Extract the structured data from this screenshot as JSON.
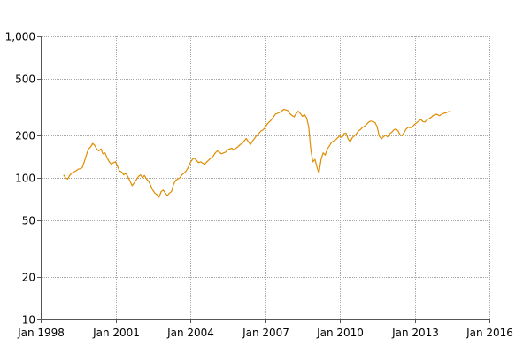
{
  "chart_data": {
    "type": "line",
    "title": "",
    "xlabel": "",
    "ylabel": "",
    "y_scale": "log",
    "ylim": [
      10,
      1000
    ],
    "xlim": [
      "1998-01-01",
      "2016-01-01"
    ],
    "grid": true,
    "legend": "none",
    "y_ticks": [
      {
        "value": 10,
        "label": "10"
      },
      {
        "value": 20,
        "label": "20"
      },
      {
        "value": 50,
        "label": "50"
      },
      {
        "value": 100,
        "label": "100"
      },
      {
        "value": 200,
        "label": "200"
      },
      {
        "value": 500,
        "label": "500"
      },
      {
        "value": 1000,
        "label": "1,000"
      }
    ],
    "x_ticks": [
      {
        "value": "1998-01-01",
        "label": "Jan 1998"
      },
      {
        "value": "2001-01-01",
        "label": "Jan 2001"
      },
      {
        "value": "2004-01-01",
        "label": "Jan 2004"
      },
      {
        "value": "2007-01-01",
        "label": "Jan 2007"
      },
      {
        "value": "2010-01-01",
        "label": "Jan 2010"
      },
      {
        "value": "2013-01-01",
        "label": "Jan 2013"
      },
      {
        "value": "2016-01-01",
        "label": "Jan 2016"
      }
    ],
    "colors": {
      "line": "#e08c00",
      "grid": "#a8a8a8",
      "axis": "#555555"
    },
    "series": [
      {
        "x": [
          "1998-12-01",
          "1999-01-01",
          "1999-02-01",
          "1999-03-01",
          "1999-04-01",
          "1999-05-01",
          "1999-06-01",
          "1999-07-01",
          "1999-08-01",
          "1999-09-01",
          "1999-10-01",
          "1999-11-01",
          "1999-12-01",
          "2000-01-01",
          "2000-02-01",
          "2000-03-01",
          "2000-04-01",
          "2000-05-01",
          "2000-06-01",
          "2000-07-01",
          "2000-08-01",
          "2000-09-01",
          "2000-10-01",
          "2000-11-01",
          "2000-12-01",
          "2001-01-01",
          "2001-02-01",
          "2001-03-01",
          "2001-04-01",
          "2001-05-01",
          "2001-06-01",
          "2001-07-01",
          "2001-08-01",
          "2001-09-01",
          "2001-10-01",
          "2001-11-01",
          "2001-12-01",
          "2002-01-01",
          "2002-02-01",
          "2002-03-01",
          "2002-04-01",
          "2002-05-01",
          "2002-06-01",
          "2002-07-01",
          "2002-08-01",
          "2002-09-01",
          "2002-10-01",
          "2002-11-01",
          "2002-12-01",
          "2003-01-01",
          "2003-02-01",
          "2003-03-01",
          "2003-04-01",
          "2003-05-01",
          "2003-06-01",
          "2003-07-01",
          "2003-08-01",
          "2003-09-01",
          "2003-10-01",
          "2003-11-01",
          "2003-12-01",
          "2004-01-01",
          "2004-02-01",
          "2004-03-01",
          "2004-04-01",
          "2004-05-01",
          "2004-06-01",
          "2004-07-01",
          "2004-08-01",
          "2004-09-01",
          "2004-10-01",
          "2004-11-01",
          "2004-12-01",
          "2005-01-01",
          "2005-02-01",
          "2005-03-01",
          "2005-04-01",
          "2005-05-01",
          "2005-06-01",
          "2005-07-01",
          "2005-08-01",
          "2005-09-01",
          "2005-10-01",
          "2005-11-01",
          "2005-12-01",
          "2006-01-01",
          "2006-02-01",
          "2006-03-01",
          "2006-04-01",
          "2006-05-01",
          "2006-06-01",
          "2006-07-01",
          "2006-08-01",
          "2006-09-01",
          "2006-10-01",
          "2006-11-01",
          "2006-12-01",
          "2007-01-01",
          "2007-02-01",
          "2007-03-01",
          "2007-04-01",
          "2007-05-01",
          "2007-06-01",
          "2007-07-01",
          "2007-08-01",
          "2007-09-01",
          "2007-10-01",
          "2007-11-01",
          "2007-12-01",
          "2008-01-01",
          "2008-02-01",
          "2008-03-01",
          "2008-04-01",
          "2008-05-01",
          "2008-06-01",
          "2008-07-01",
          "2008-08-01",
          "2008-09-01",
          "2008-10-01",
          "2008-11-01",
          "2008-12-01",
          "2009-01-01",
          "2009-02-01",
          "2009-03-01",
          "2009-04-01",
          "2009-05-01",
          "2009-06-01",
          "2009-07-01",
          "2009-08-01",
          "2009-09-01",
          "2009-10-01",
          "2009-11-01",
          "2009-12-01",
          "2010-01-01",
          "2010-02-01",
          "2010-03-01",
          "2010-04-01",
          "2010-05-01",
          "2010-06-01",
          "2010-07-01",
          "2010-08-01",
          "2010-09-01",
          "2010-10-01",
          "2010-11-01",
          "2010-12-01",
          "2011-01-01",
          "2011-02-01",
          "2011-03-01",
          "2011-04-01",
          "2011-05-01",
          "2011-06-01",
          "2011-07-01",
          "2011-08-01",
          "2011-09-01",
          "2011-10-01",
          "2011-11-01",
          "2011-12-01",
          "2012-01-01",
          "2012-02-01",
          "2012-03-01",
          "2012-04-01",
          "2012-05-01",
          "2012-06-01",
          "2012-07-01",
          "2012-08-01",
          "2012-09-01",
          "2012-10-01",
          "2012-11-01",
          "2012-12-01",
          "2013-01-01",
          "2013-02-01",
          "2013-03-01",
          "2013-04-01",
          "2013-05-01",
          "2013-06-01",
          "2013-07-01",
          "2013-08-01",
          "2013-09-01",
          "2013-10-01",
          "2013-11-01",
          "2013-12-01",
          "2014-01-01",
          "2014-02-01",
          "2014-03-01",
          "2014-04-01",
          "2014-05-01",
          "2014-06-01"
        ],
        "values": [
          105,
          100,
          98,
          104,
          108,
          110,
          112,
          115,
          116,
          118,
          130,
          145,
          160,
          165,
          175,
          170,
          160,
          155,
          160,
          148,
          150,
          138,
          130,
          125,
          128,
          130,
          120,
          112,
          110,
          105,
          108,
          102,
          95,
          88,
          92,
          97,
          102,
          105,
          100,
          104,
          98,
          95,
          88,
          82,
          78,
          76,
          73,
          80,
          82,
          78,
          75,
          78,
          80,
          90,
          96,
          98,
          100,
          105,
          108,
          112,
          118,
          128,
          135,
          138,
          133,
          128,
          130,
          127,
          125,
          130,
          134,
          138,
          142,
          150,
          155,
          152,
          148,
          150,
          152,
          158,
          160,
          162,
          158,
          162,
          166,
          172,
          175,
          182,
          190,
          180,
          172,
          182,
          190,
          200,
          206,
          214,
          218,
          226,
          240,
          248,
          256,
          268,
          282,
          286,
          290,
          296,
          305,
          302,
          298,
          284,
          276,
          270,
          285,
          296,
          285,
          272,
          280,
          265,
          230,
          158,
          130,
          135,
          118,
          108,
          135,
          150,
          145,
          160,
          168,
          178,
          182,
          186,
          192,
          198,
          192,
          205,
          207,
          188,
          180,
          192,
          198,
          205,
          215,
          220,
          228,
          232,
          240,
          248,
          252,
          250,
          246,
          230,
          198,
          188,
          195,
          200,
          195,
          205,
          210,
          218,
          222,
          215,
          202,
          198,
          210,
          222,
          228,
          226,
          230,
          240,
          245,
          252,
          258,
          250,
          248,
          258,
          262,
          268,
          276,
          282,
          280,
          275,
          282,
          286,
          288,
          292,
          295
        ]
      }
    ]
  }
}
